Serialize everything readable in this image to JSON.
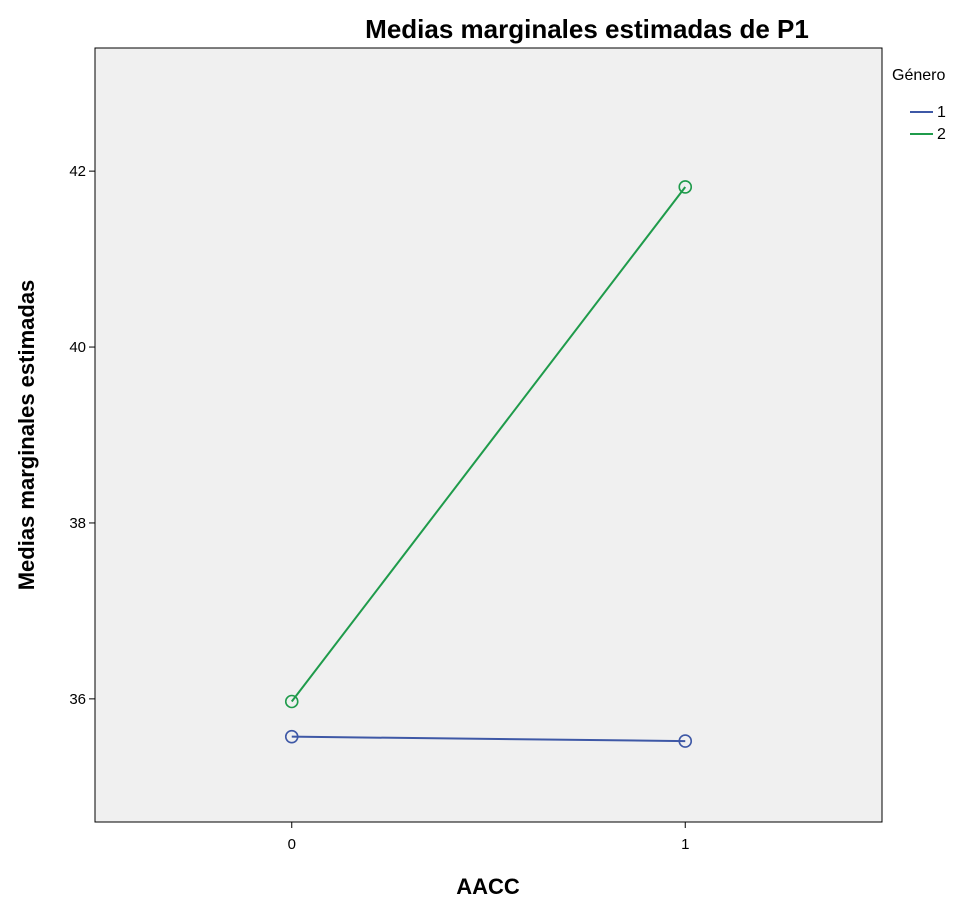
{
  "chart_data": {
    "type": "line",
    "title": "Medias marginales estimadas de P1",
    "xlabel": "AACC",
    "ylabel": "Medias marginales estimadas",
    "categories": [
      "0",
      "1"
    ],
    "xlim": [
      -0.5,
      1.5
    ],
    "ylim": [
      34.6,
      43.4
    ],
    "yticks": [
      36,
      38,
      40,
      42
    ],
    "grid": false,
    "legend": {
      "title": "Género",
      "position": "top-right, outside plot"
    },
    "series": [
      {
        "name": "1",
        "color": "#3e58a6",
        "values": [
          35.57,
          35.52
        ]
      },
      {
        "name": "2",
        "color": "#1f9b4b",
        "values": [
          35.97,
          41.82
        ]
      }
    ],
    "plot_background": "#f0f0f0"
  }
}
